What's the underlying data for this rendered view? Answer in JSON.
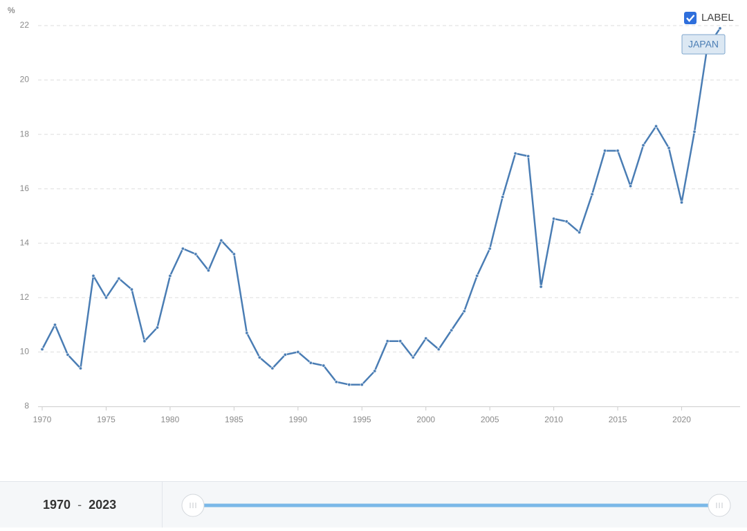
{
  "chart_data": {
    "type": "line",
    "y_label": "%",
    "label_toggle": "LABEL",
    "x": [
      1970,
      1971,
      1972,
      1973,
      1974,
      1975,
      1976,
      1977,
      1978,
      1979,
      1980,
      1981,
      1982,
      1983,
      1984,
      1985,
      1986,
      1987,
      1988,
      1989,
      1990,
      1991,
      1992,
      1993,
      1994,
      1995,
      1996,
      1997,
      1998,
      1999,
      2000,
      2001,
      2002,
      2003,
      2004,
      2005,
      2006,
      2007,
      2008,
      2009,
      2010,
      2011,
      2012,
      2013,
      2014,
      2015,
      2016,
      2017,
      2018,
      2019,
      2020,
      2021,
      2022,
      2023
    ],
    "series": [
      {
        "name": "JAPAN",
        "color": "#4a7db4",
        "values": [
          10.1,
          11.0,
          9.9,
          9.4,
          12.8,
          12.0,
          12.7,
          12.3,
          10.4,
          10.9,
          12.8,
          13.8,
          13.6,
          13.0,
          14.1,
          13.6,
          10.7,
          9.8,
          9.4,
          9.9,
          10.0,
          9.6,
          9.5,
          8.9,
          8.8,
          8.8,
          9.3,
          10.4,
          10.4,
          9.8,
          10.5,
          10.1,
          10.8,
          11.5,
          12.8,
          13.8,
          15.7,
          17.3,
          17.2,
          12.4,
          14.9,
          14.8,
          14.4,
          15.8,
          17.4,
          17.4,
          16.1,
          17.6,
          18.3,
          17.5,
          15.5,
          18.1,
          21.2,
          21.9
        ]
      }
    ],
    "xlim": [
      1970,
      2023
    ],
    "xticks": [
      1970,
      1975,
      1980,
      1985,
      1990,
      1995,
      2000,
      2005,
      2010,
      2015,
      2020
    ],
    "ylim": [
      8,
      22
    ],
    "yticks": [
      8,
      10,
      12,
      14,
      16,
      18,
      20,
      22
    ],
    "grid": true,
    "range_separator": "-"
  }
}
